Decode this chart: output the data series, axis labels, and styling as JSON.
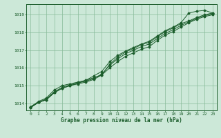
{
  "background_color": "#cce8d8",
  "grid_color": "#88bb99",
  "line_color": "#1a5c2a",
  "title": "Graphe pression niveau de la mer (hPa)",
  "xlim": [
    -0.5,
    23.5
  ],
  "ylim": [
    1013.6,
    1019.6
  ],
  "yticks": [
    1014,
    1015,
    1016,
    1017,
    1018,
    1019
  ],
  "xticks": [
    0,
    1,
    2,
    3,
    4,
    5,
    6,
    7,
    8,
    9,
    10,
    11,
    12,
    13,
    14,
    15,
    16,
    17,
    18,
    19,
    20,
    21,
    22,
    23
  ],
  "series": [
    [
      1013.8,
      1014.1,
      1014.3,
      1014.75,
      1015.0,
      1015.1,
      1015.2,
      1015.3,
      1015.45,
      1015.6,
      1016.0,
      1016.35,
      1016.65,
      1016.85,
      1017.05,
      1017.2,
      1017.55,
      1017.85,
      1018.05,
      1018.3,
      1018.55,
      1018.75,
      1018.9,
      1019.0
    ],
    [
      1013.8,
      1014.05,
      1014.25,
      1014.65,
      1014.9,
      1015.05,
      1015.15,
      1015.25,
      1015.4,
      1015.65,
      1016.15,
      1016.5,
      1016.8,
      1017.0,
      1017.2,
      1017.35,
      1017.65,
      1017.95,
      1018.15,
      1018.4,
      1018.6,
      1018.8,
      1018.95,
      1019.05
    ],
    [
      1013.75,
      1014.05,
      1014.2,
      1014.6,
      1014.85,
      1015.0,
      1015.1,
      1015.2,
      1015.35,
      1015.6,
      1016.2,
      1016.6,
      1016.9,
      1017.1,
      1017.3,
      1017.45,
      1017.75,
      1018.05,
      1018.25,
      1018.5,
      1018.65,
      1018.85,
      1019.0,
      1019.1
    ],
    [
      1013.75,
      1014.05,
      1014.2,
      1014.6,
      1014.85,
      1015.0,
      1015.15,
      1015.3,
      1015.55,
      1015.8,
      1016.35,
      1016.7,
      1016.95,
      1017.15,
      1017.35,
      1017.5,
      1017.8,
      1018.1,
      1018.3,
      1018.55,
      1019.1,
      1019.2,
      1019.25,
      1019.1
    ]
  ]
}
